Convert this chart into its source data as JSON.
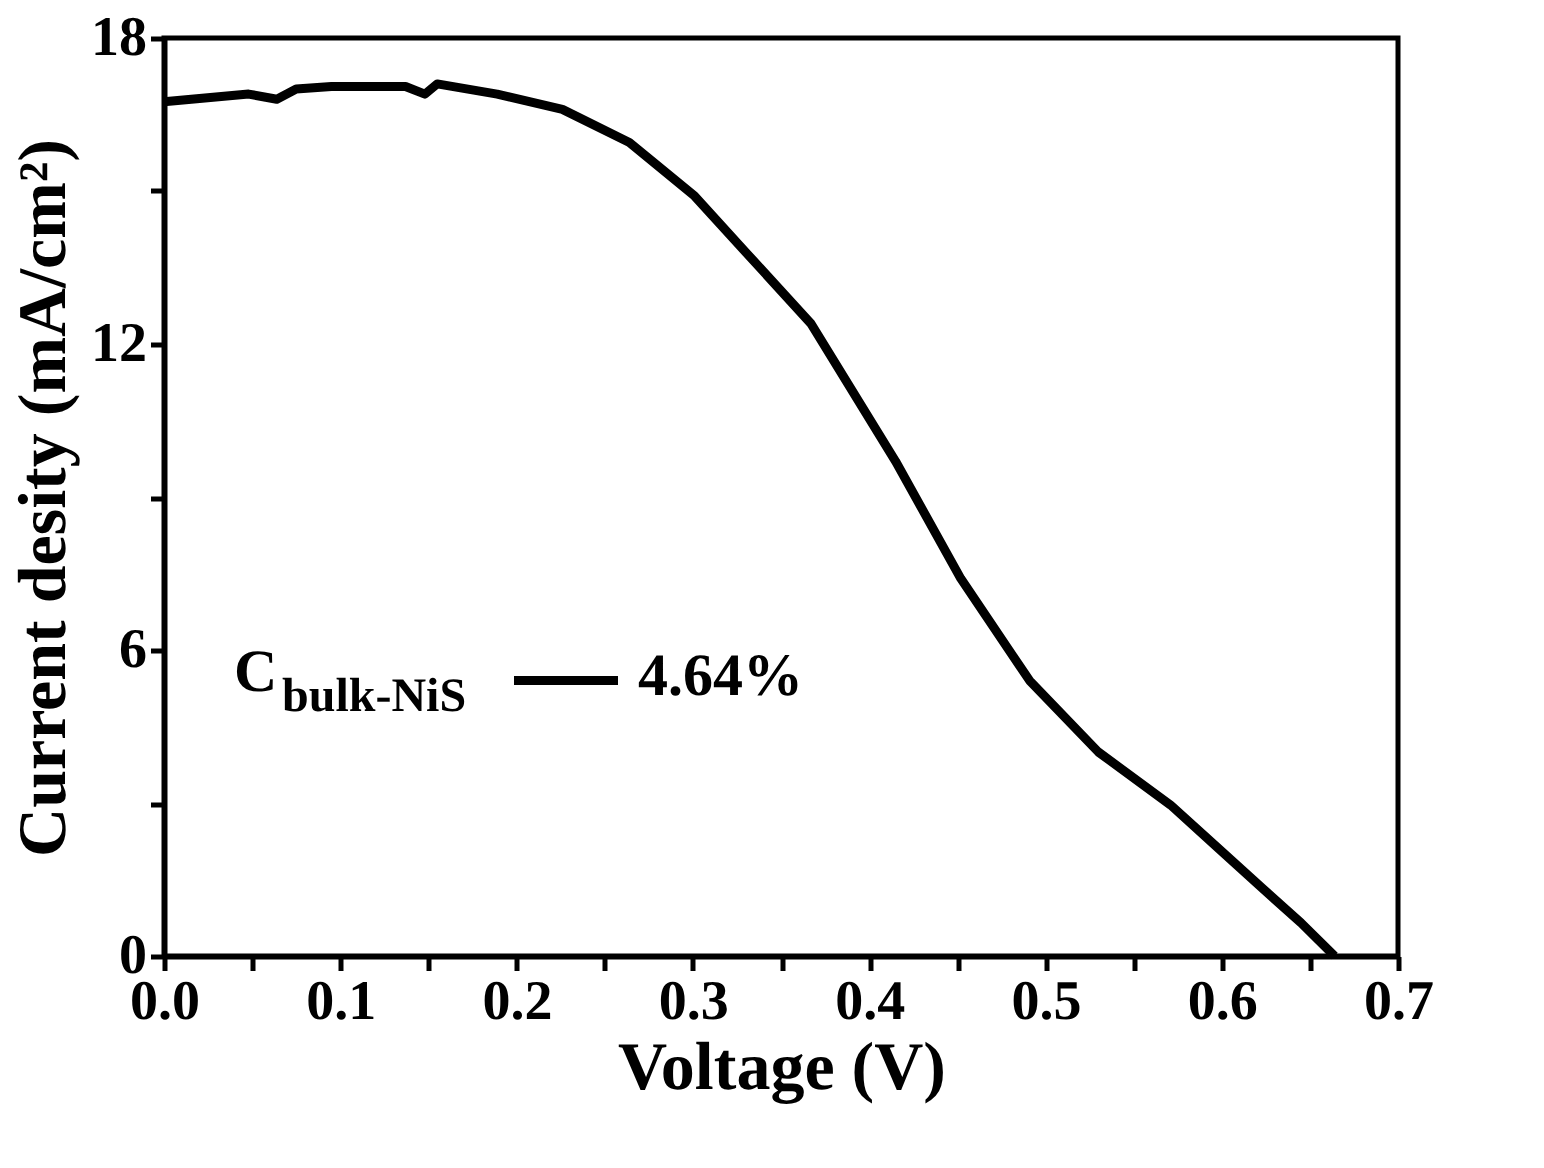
{
  "chart_data": {
    "type": "line",
    "xlabel": "Voltage (V)",
    "ylabel": "Current desity (mA/cm²)",
    "xlim": [
      0,
      0.7
    ],
    "ylim": [
      0,
      18
    ],
    "xticks": [
      {
        "value": 0,
        "label": "0.0"
      },
      {
        "value": 0.05,
        "label": null
      },
      {
        "value": 0.1,
        "label": "0.1"
      },
      {
        "value": 0.15,
        "label": null
      },
      {
        "value": 0.2,
        "label": "0.2"
      },
      {
        "value": 0.25,
        "label": null
      },
      {
        "value": 0.3,
        "label": "0.3"
      },
      {
        "value": 0.35,
        "label": null
      },
      {
        "value": 0.4,
        "label": "0.4"
      },
      {
        "value": 0.45,
        "label": null
      },
      {
        "value": 0.5,
        "label": "0.5"
      },
      {
        "value": 0.55,
        "label": null
      },
      {
        "value": 0.6,
        "label": "0.6"
      },
      {
        "value": 0.65,
        "label": null
      },
      {
        "value": 0.7,
        "label": "0.7"
      }
    ],
    "yticks": [
      0,
      {
        "value": 3,
        "label": null
      },
      6,
      {
        "value": 9,
        "label": null
      },
      12,
      {
        "value": 15,
        "label": null
      },
      18
    ],
    "grid": false,
    "legend": "left",
    "marker": "none",
    "line_style": "solid",
    "annotations": [
      "4.64%"
    ],
    "series": [
      {
        "name": "C$_{bulk-NiS}$",
        "color": "#000000",
        "x": [
          0,
          0.048,
          0.064,
          0.075,
          0.095,
          0.137,
          0.148,
          0.155,
          0.189,
          0.226,
          0.264,
          0.301,
          0.33,
          0.367,
          0.415,
          0.452,
          0.491,
          0.53,
          0.571,
          0.6,
          0.623,
          0.645,
          0.664
        ],
        "values": [
          16.75,
          16.9,
          16.8,
          17.0,
          17.05,
          17.05,
          16.9,
          17.1,
          16.9,
          16.6,
          15.95,
          14.9,
          13.8,
          12.4,
          9.7,
          7.4,
          5.4,
          4.0,
          2.96,
          2.05,
          1.33,
          0.65,
          0
        ]
      }
    ]
  }
}
